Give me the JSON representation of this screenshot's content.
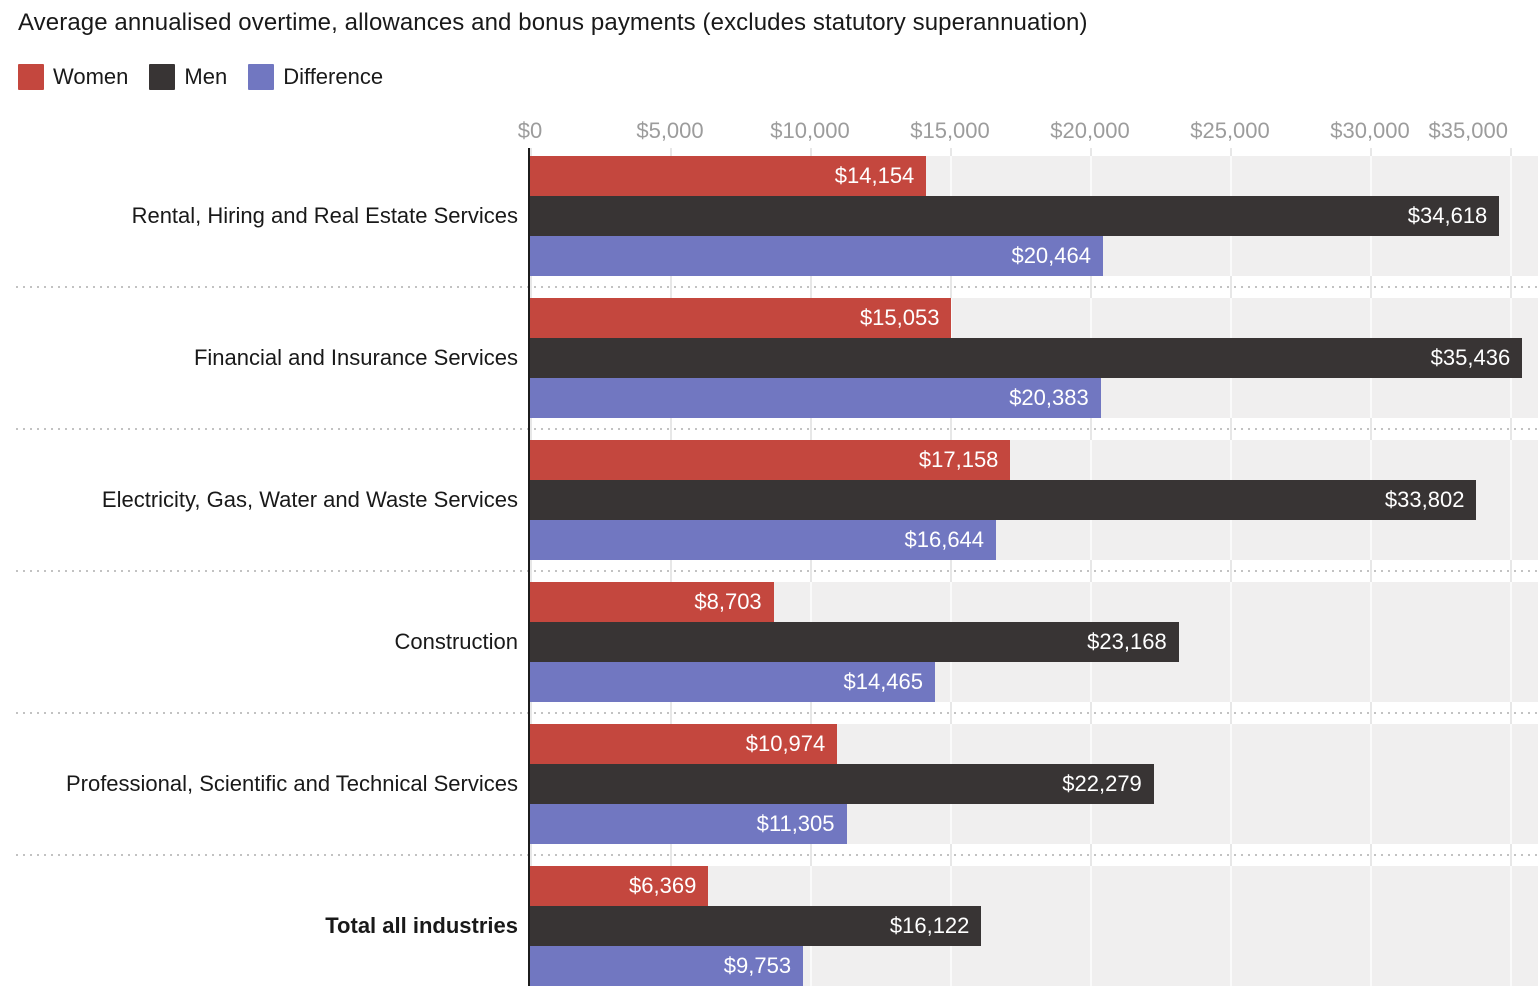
{
  "title": "Average annualised overtime, allowances and bonus payments (excludes statutory superannuation)",
  "legend": {
    "items": [
      {
        "label": "Women",
        "color": "#c4473e"
      },
      {
        "label": "Men",
        "color": "#383434"
      },
      {
        "label": "Difference",
        "color": "#7177c1"
      }
    ]
  },
  "chart_data": {
    "type": "bar",
    "orientation": "horizontal",
    "title": "Average annualised overtime, allowances and bonus payments (excludes statutory superannuation)",
    "categories": [
      "Rental, Hiring and Real Estate Services",
      "Financial and Insurance Services",
      "Electricity, Gas, Water and Waste Services",
      "Construction",
      "Professional, Scientific and Technical Services",
      "Total all industries"
    ],
    "bold_category": "Total all industries",
    "series": [
      {
        "name": "Women",
        "color": "#c4473e",
        "values": [
          14154,
          15053,
          17158,
          8703,
          10974,
          6369
        ]
      },
      {
        "name": "Men",
        "color": "#383434",
        "values": [
          34618,
          35436,
          33802,
          23168,
          22279,
          16122
        ]
      },
      {
        "name": "Difference",
        "color": "#7177c1",
        "values": [
          20464,
          20383,
          16644,
          14465,
          11305,
          9753
        ]
      }
    ],
    "value_label_prefix": "$",
    "x_axis": {
      "tick_labels": [
        "$0",
        "$5,000",
        "$10,000",
        "$15,000",
        "$20,000",
        "$25,000",
        "$30,000",
        "$35,000"
      ],
      "tick_values": [
        0,
        5000,
        10000,
        15000,
        20000,
        25000,
        30000,
        35000
      ],
      "min": 0,
      "max": 36000
    },
    "grid": true,
    "legend_position": "top",
    "colors": {
      "band_background": "#f0efef",
      "grid_on_band": "#fafafa",
      "grid_on_gap": "#e7e7e7",
      "separator_dots": "#c2c2c2",
      "axis_label": "#9c9c9c",
      "axis_line": "#1c1c1c",
      "bar_value_text": "#ffffff"
    }
  }
}
